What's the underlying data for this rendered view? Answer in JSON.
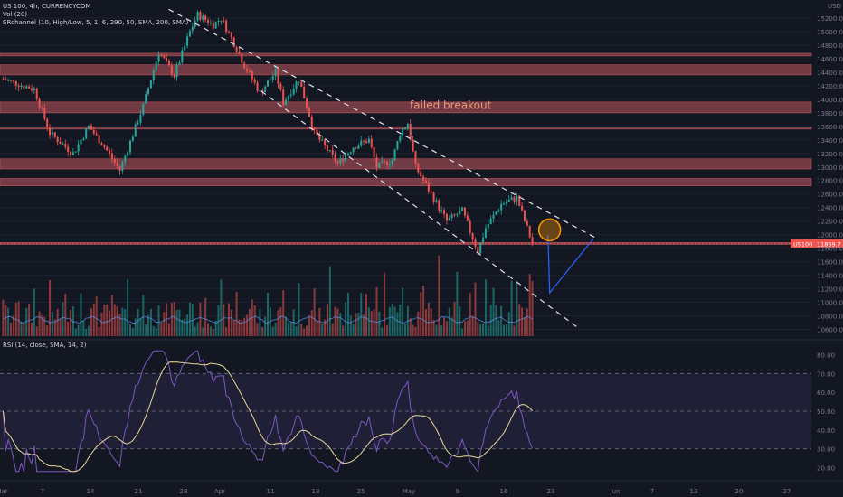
{
  "header": {
    "symbol": "US 100, 4h, CURRENCYCOM",
    "vol_indicator": "Vol (20)",
    "channel_indicator": "SRchannel (10, High/Low, 5, 1, 6, 290, 50, SMA, 200, SMA)",
    "rsi_indicator": "RSI (14, close, SMA, 14, 2)",
    "currency": "USD"
  },
  "colors": {
    "background": "#131722",
    "up": "#26a69a",
    "down": "#ef5350",
    "zone_fill": "#b2535a",
    "rsi_line": "#7e57c2",
    "rsi_ma": "#e7d79a",
    "projection": "#2962ff",
    "price_tag": "#ef5350",
    "circle": "#ff9800"
  },
  "chart_data": [
    {
      "type": "candlestick",
      "title": "US 100, 4h, CURRENCYCOM",
      "ylim": [
        10500,
        15400
      ],
      "yticks": [
        10600,
        10800,
        11000,
        11200,
        11400,
        11600,
        11800,
        12000,
        12200,
        12400,
        12600,
        12800,
        13000,
        13200,
        13400,
        13600,
        13800,
        14000,
        14200,
        14400,
        14600,
        14800,
        15000,
        15200
      ],
      "xticks": [
        "Mar",
        "7",
        "14",
        "21",
        "28",
        "Apr",
        "11",
        "18",
        "25",
        "May",
        "9",
        "16",
        "23",
        "Jun",
        "7",
        "13",
        "20",
        "27"
      ],
      "price_path": [
        {
          "t": 0,
          "p": 14300
        },
        {
          "t": 4,
          "p": 14150
        },
        {
          "t": 6,
          "p": 13500
        },
        {
          "t": 9,
          "p": 13200
        },
        {
          "t": 11,
          "p": 13600
        },
        {
          "t": 13,
          "p": 13300
        },
        {
          "t": 15,
          "p": 12950
        },
        {
          "t": 18,
          "p": 13900
        },
        {
          "t": 20,
          "p": 14700
        },
        {
          "t": 22,
          "p": 14350
        },
        {
          "t": 24,
          "p": 15000
        },
        {
          "t": 25,
          "p": 15250
        },
        {
          "t": 27,
          "p": 15100
        },
        {
          "t": 28,
          "p": 15200
        },
        {
          "t": 30,
          "p": 14750
        },
        {
          "t": 31,
          "p": 14500
        },
        {
          "t": 33,
          "p": 14100
        },
        {
          "t": 35,
          "p": 14400
        },
        {
          "t": 36,
          "p": 13950
        },
        {
          "t": 38,
          "p": 14300
        },
        {
          "t": 39,
          "p": 13900
        },
        {
          "t": 40,
          "p": 13500
        },
        {
          "t": 42,
          "p": 13200
        },
        {
          "t": 43,
          "p": 13050
        },
        {
          "t": 45,
          "p": 13300
        },
        {
          "t": 47,
          "p": 13400
        },
        {
          "t": 48,
          "p": 13000
        },
        {
          "t": 50,
          "p": 13100
        },
        {
          "t": 51,
          "p": 13500
        },
        {
          "t": 52,
          "p": 13650
        },
        {
          "t": 53,
          "p": 13000
        },
        {
          "t": 55,
          "p": 12600
        },
        {
          "t": 57,
          "p": 12200
        },
        {
          "t": 59,
          "p": 12350
        },
        {
          "t": 61,
          "p": 11750
        },
        {
          "t": 62,
          "p": 12100
        },
        {
          "t": 64,
          "p": 12450
        },
        {
          "t": 66,
          "p": 12550
        },
        {
          "t": 67,
          "p": 12200
        },
        {
          "t": 68,
          "p": 11870
        }
      ],
      "current_price_label": "US100",
      "current_price": "11869.7",
      "resistance_zones": [
        [
          14640,
          14680
        ],
        [
          14360,
          14510
        ],
        [
          13800,
          13960
        ],
        [
          13560,
          13590
        ],
        [
          12970,
          13120
        ],
        [
          12720,
          12830
        ],
        [
          11855,
          11885
        ]
      ],
      "channel_upper": [
        [
          15330,
          0.2
        ],
        [
          11930,
          0.71
        ]
      ],
      "channel_lower": [
        [
          14120,
          0.31
        ],
        [
          10630,
          0.685
        ]
      ],
      "projection_path": [
        [
          12000,
          0.65
        ],
        [
          11140,
          0.652
        ],
        [
          11940,
          0.704
        ]
      ],
      "circle_at": [
        12070,
        0.652
      ],
      "annotation": "failed breakout"
    },
    {
      "type": "bar",
      "title": "Vol (20)"
    },
    {
      "type": "line",
      "title": "RSI (14, close, SMA, 14, 2)",
      "ylim": [
        15,
        85
      ],
      "yticks": [
        20,
        30,
        40,
        50,
        60,
        70,
        80
      ],
      "band": [
        30,
        70
      ]
    }
  ]
}
